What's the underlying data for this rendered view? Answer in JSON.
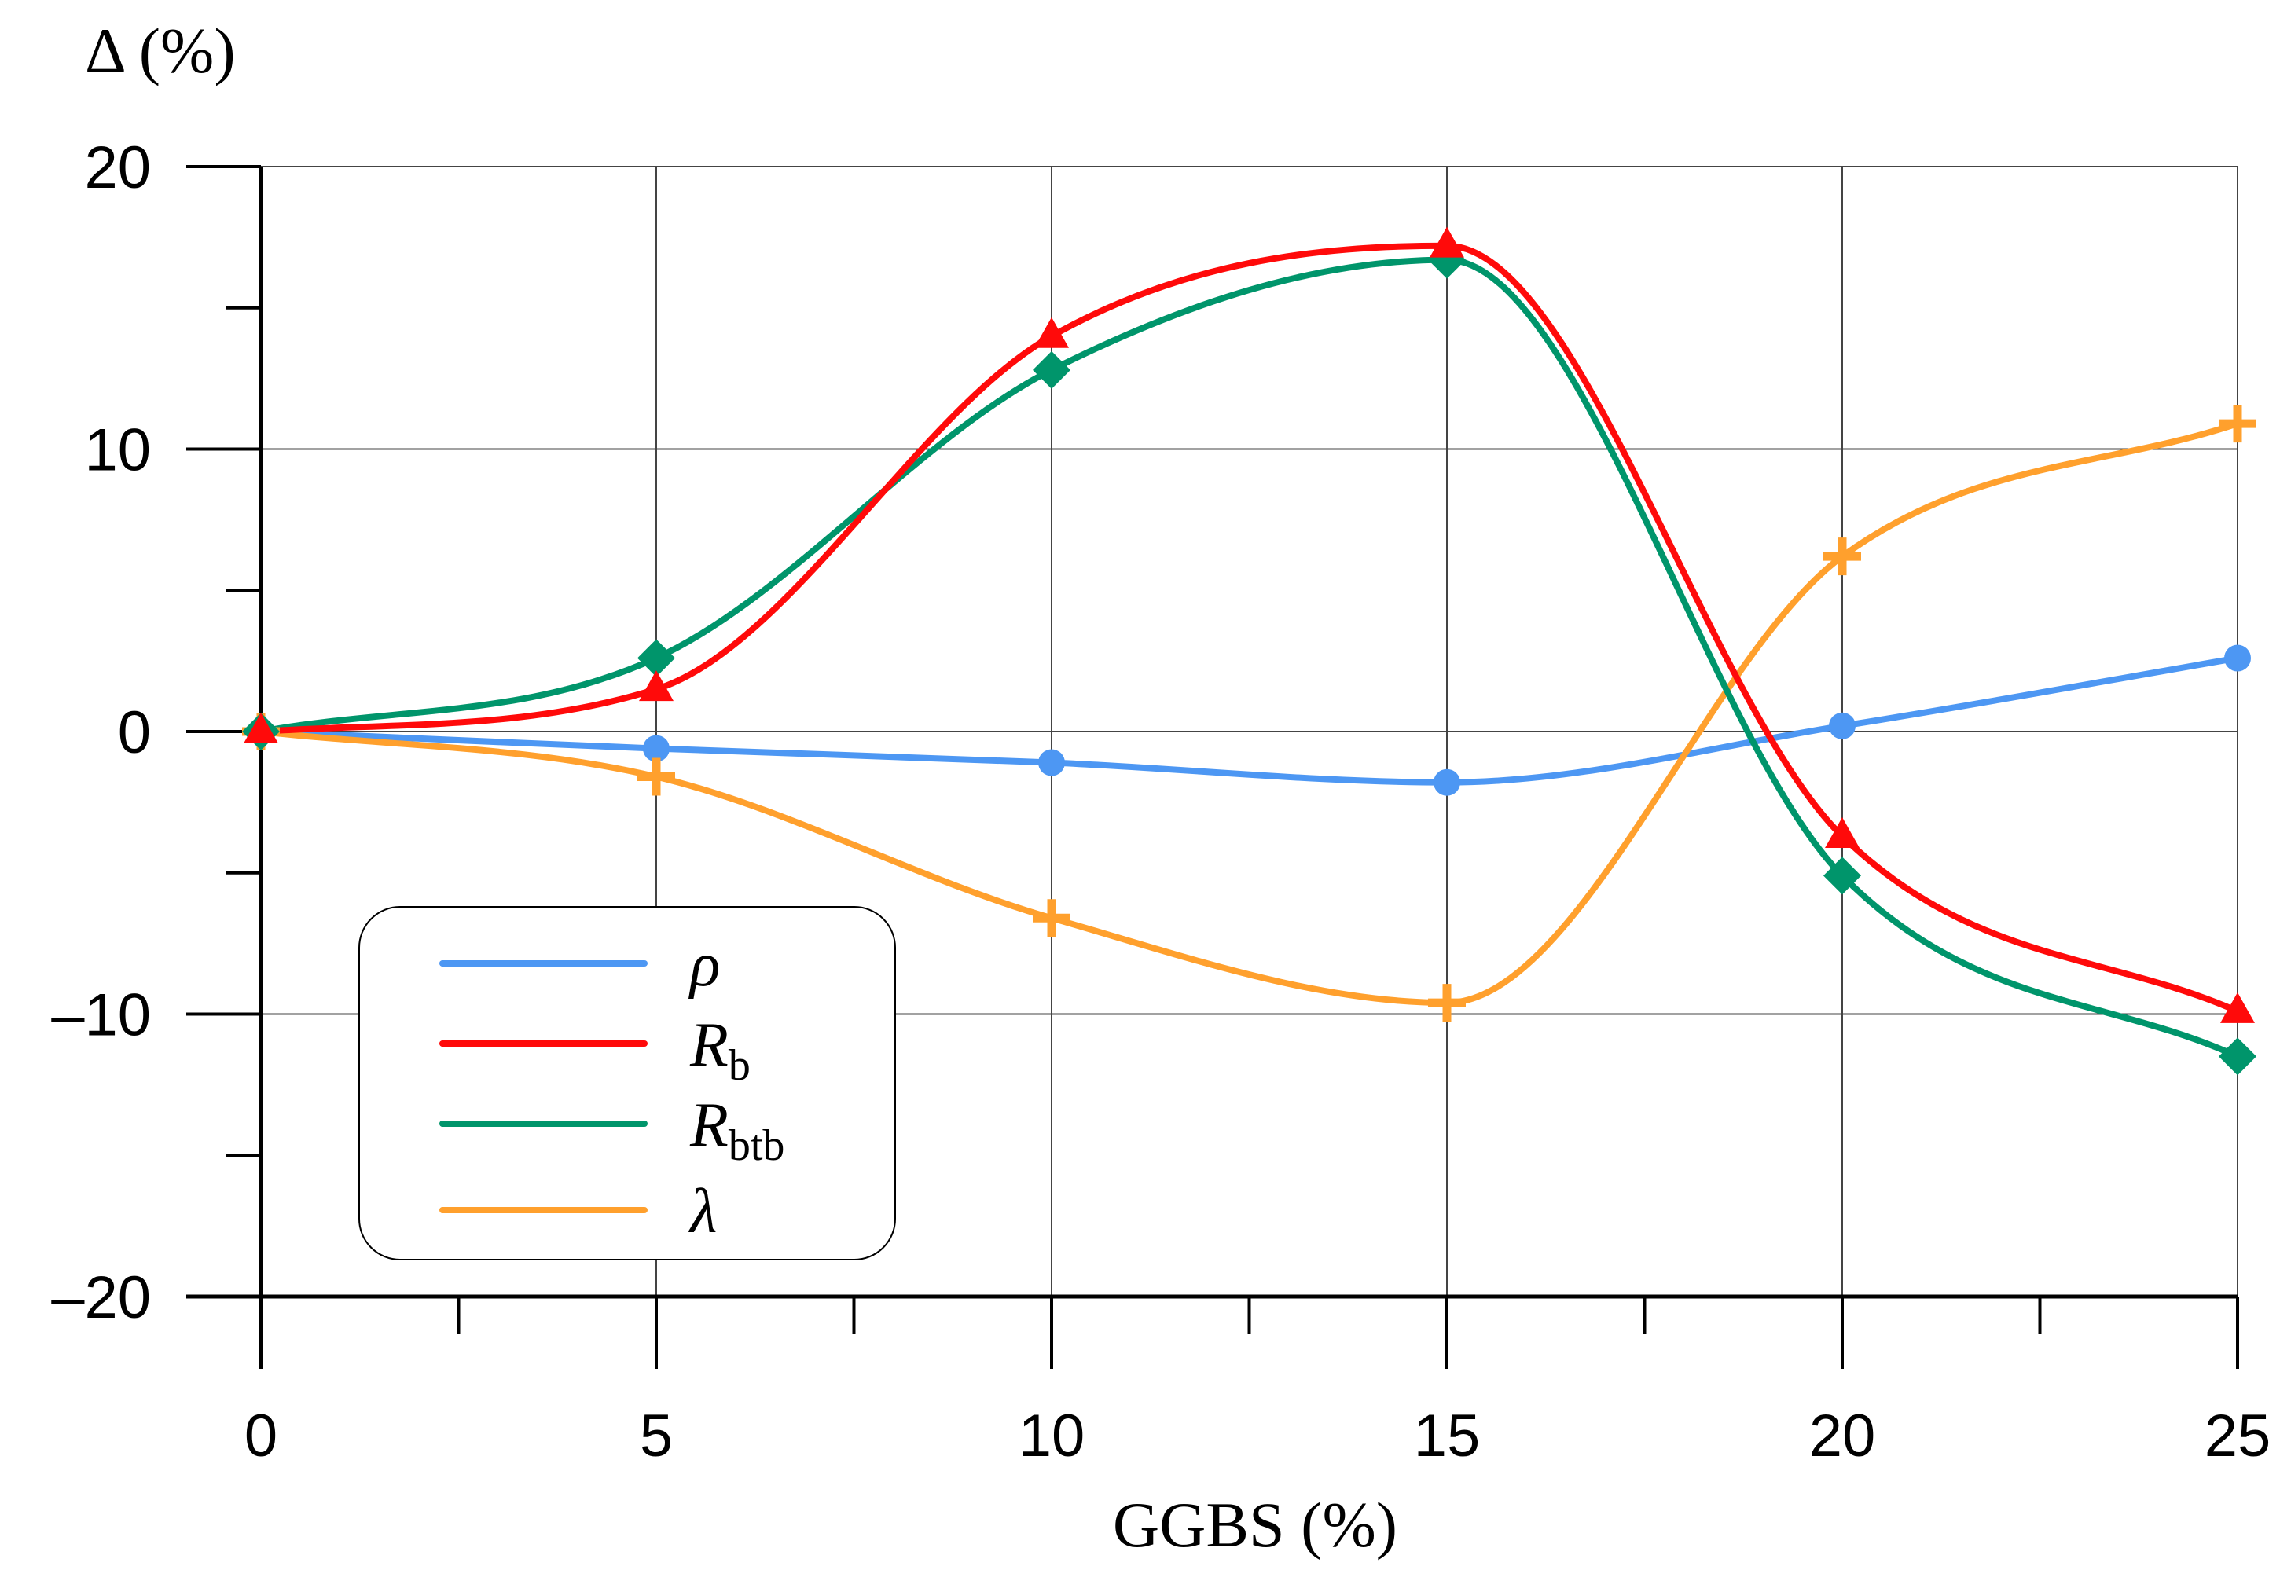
{
  "chart_data": {
    "type": "line",
    "ylabel": "Δ (%)",
    "xlabel": "GGBS (%)",
    "x": [
      0,
      5,
      10,
      15,
      20,
      25
    ],
    "xlim": [
      0,
      25
    ],
    "ylim": [
      -20,
      20
    ],
    "xticks": [
      0,
      5,
      10,
      15,
      20,
      25
    ],
    "yticks": [
      -20,
      -10,
      0,
      10,
      20
    ],
    "x_tick_labels": [
      "0",
      "5",
      "10",
      "15",
      "20",
      "25"
    ],
    "y_tick_labels": [
      "–20",
      "–10",
      "0",
      "10",
      "20"
    ],
    "grid": true,
    "legend_position": "bottom-left",
    "series": [
      {
        "name": "ρ",
        "sub": "",
        "color": "#4d97f3",
        "marker": "circle",
        "values": [
          0,
          -0.6,
          -1.1,
          -1.8,
          0.2,
          2.6
        ]
      },
      {
        "name": "R",
        "sub": "b",
        "color": "#ff0a0a",
        "marker": "triangle",
        "values": [
          0,
          1.5,
          14.0,
          17.2,
          -3.7,
          -9.9
        ]
      },
      {
        "name": "R",
        "sub": "btb",
        "color": "#00956b",
        "marker": "diamond",
        "values": [
          0,
          2.6,
          12.8,
          16.7,
          -5.1,
          -11.5
        ]
      },
      {
        "name": "λ",
        "sub": "",
        "color": "#ffa02d",
        "marker": "plus",
        "values": [
          0,
          -1.6,
          -6.6,
          -9.6,
          6.2,
          10.9
        ]
      }
    ]
  }
}
